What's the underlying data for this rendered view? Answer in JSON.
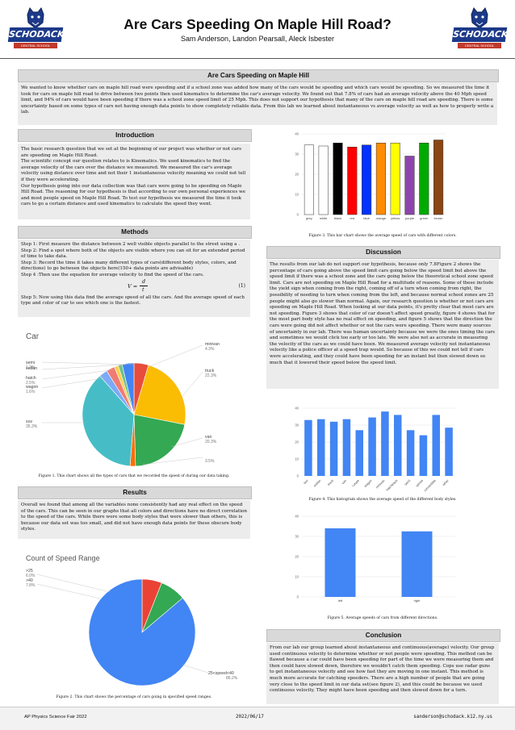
{
  "header": {
    "title": "Are Cars Speeding On Maple Hill Road?",
    "authors": "Sam Anderson, Landon Pearsall, Aleck Isbester",
    "logo_text": "SCHODACK",
    "logo_sub": "CENTRAL SCHOOL DISTRICT"
  },
  "abstract": {
    "heading": "Are Cars Speeding on Maple Hill",
    "text": "We wanted to know whether cars on maple hill road were speeding and if a school zone was added how many of the cars would be speeding and which cars would be speeding. So we measured the time it took for cars on maple hill road to drive between two points then used kinematics to determine the car's average velocity. We found out that 7.8% of cars had an average velocity above the 40 Mph speed limit, and 94% of cars would have been speeding if there was a school zone speed limit of 25 Mph. This does not support our hypothesis that many of the cars on maple hill road are speeding. There is some uncertainty based on some types of cars not having enough data points to show completely reliable data. From this lab we learned about instantaneous vs average velocity as well as how to properly write a lab."
  },
  "introduction": {
    "heading": "Introduction",
    "paragraphs": [
      "The basic research question that we set at the beginning of our project was whether or not cars are speeding on Maple Hill Road.",
      "The scientific concept our question relates to is Kinematics. We used kinematics to find the average velocity of the cars over the distance we measured. We measured the car's average velocity using distance over time and not their 1 instantaneous velocity meaning we could not tell if they were accelerating.",
      "Our hypothesis going into our data collection was that cars were going to be speeding on Maple Hill Road. The reasoning for our hypothesis is that according to our own personal experiences we and most people speed on Maple Hill Road. To test our hypothesis we measured the time it took cars to go a certain distance and used kinematics to calculate the speed they went."
    ]
  },
  "methods": {
    "heading": "Methods",
    "steps": [
      "Step 1: First measure the distance between 2 well visible objects parallel to the street using a .",
      "Step 2: Find a spot where both of the objects are visible where you can sit for an extended period of time to take data.",
      "Step 3: Record the time it takes many different types of cars(different body styles, colors, and directions) to go between the objects here(150+ data points are advisable)",
      "Step 4 :Then use the equation for average velocity to find the speed of the cars."
    ],
    "eq_lhs": "V =",
    "eq_num": "d",
    "eq_den": "t",
    "eq_label": "(1)",
    "step5": "Step 5: Now using this data find the average speed of all the cars. And the average speed of each type and color of car to see which one is the fastest."
  },
  "results": {
    "heading": "Results",
    "text": "Overall we found that among all the variables none consistently had any real effect on the speed of the cars. This can be seen in our graphs that all colors and directions have no direct correlation to the speed of the cars. While there were some body styles that were slower than others, this is because our data set was too small, and did not have enough data points for these obscure body styles."
  },
  "discussion": {
    "heading": "Discussion",
    "text": "The results from our lab do not support our hypothesis, because only 7.8Figure 2 shows the percentage of cars going above the speed limit cars going below the speed limit but above the speed limit if there was a school zone and the cars going below the theoretical school zone speed limit. Cars are not speeding on Maple Hill Road for a multitude of reasons. Some of these include the yield sign when coming from the right, coming off of a turn when coming from right, the possibility of needing to turn when coming from the left, and because normal school zones are 25 people might also go slower than normal. Again, our research question is whether or not cars are speeding on Maple Hill Road. When looking at our data points, it's pretty clear that most cars are not speeding. Figure 3 shows that color of car doesn't affect speed greatly, figure 4 shows that for the most part body style has no real effect on speeding, and figure 5 shows that the direction the cars were going did not affect whether or not the cars were speeding. There were many sources of uncertainty in our lab. There was human uncertainty because we were the ones timing the cars and sometimes we would click too early or too late. We were also not as accurate in measuring the velocity of the cars as we could have been. We measured average velocity not instantaneous velocity like a police officer at a speed trap would. So because of this we could not tell if cars were accelerating, and they could have been speeding for an instant but then slowed down so much that it lowered their speed below the speed limit."
  },
  "conclusion": {
    "heading": "Conclusion",
    "text": "From our lab our group learned about instantaneous and continuous(average) velocity. Our group used continuous velocity to determine whether or not people were speeding. This method can be flawed because a car could have been speeding for part of the time we were measuring them and then could have slowed down, therefore we wouldn't catch them speeding. Cops use radar guns to get instantaneous velocity and see how fast they are moving in one instant. This method is much more accurate for catching speeders. There are a high number of people that are going very close to the speed limit in our data set(see figure 2), and this could be because we used continuous velocity. They might have been speeding and then slowed down for a turn."
  },
  "captions": {
    "fig1": "Figure 1. This chart shows all the types of cars that we recorded the speed of during our data taking.",
    "fig2": "Figure 2. This chart shows the percentage of cars going in specified speed ranges.",
    "fig3": "Figure 3. This bar chart shows the average speed of cars with different colors.",
    "fig4": "Figure 4. This histogram shows the average speed of the different body styles.",
    "fig5": "Figure 5. Average speeds of cars from different directions."
  },
  "footer": {
    "left": "AP Physics Science Fair 2022",
    "center": "2022/06/17",
    "right": "sanderson@schodack.k12.ny.us"
  },
  "chart_data": [
    {
      "type": "pie",
      "title": "Car",
      "labels": [
        "minivan",
        "truck",
        "van",
        "wagon",
        "suv",
        "hatch",
        "coupe",
        "sedan",
        "semi",
        "convertible"
      ],
      "display": [
        "minivan",
        "truck",
        "van",
        "wagon",
        "suv",
        "hatch",
        "",
        "sedan",
        "semi",
        ""
      ],
      "values": [
        4.3,
        22.3,
        20.3,
        1.6,
        35.3,
        2.5,
        2.5,
        1.2,
        1.2,
        3.5
      ],
      "value_labels": [
        "4.3%",
        "22.3%",
        "20.3%",
        "1.6%",
        "35.3%",
        "2.5%",
        "",
        "",
        "1.2%",
        "3.5%"
      ],
      "colors": [
        "#e74c3c",
        "#fbbc04",
        "#34a853",
        "#ff6d01",
        "#46bdc6",
        "#7baaf7",
        "#f07b72",
        "#fcd04f",
        "#71c287",
        "#4285f4"
      ]
    },
    {
      "type": "pie",
      "title": "Count of Speed Range",
      "labels": [
        ">25",
        ">40",
        "25<speed<40"
      ],
      "values": [
        6.0,
        7.8,
        86.2
      ],
      "value_labels": [
        "6.0%",
        "7.8%",
        "86.2%"
      ],
      "colors": [
        "#ea4335",
        "#34a853",
        "#4285f4"
      ],
      "legend": "left"
    },
    {
      "type": "bar",
      "categories": [
        "grey",
        "white",
        "black",
        "red",
        "blue",
        "orange",
        "yellow",
        "purple",
        "green",
        "brown"
      ],
      "values": [
        34.5,
        34,
        35.5,
        33.5,
        34.5,
        35.5,
        35.5,
        29,
        35.5,
        37
      ],
      "colors": [
        "#ffffff",
        "#ffffff",
        "#000000",
        "#ff0000",
        "#0033ff",
        "#ff8c00",
        "#ffff00",
        "#8e44ad",
        "#00aa00",
        "#8b4513"
      ],
      "ylim": [
        0,
        40
      ],
      "yticks": [
        0,
        10,
        20,
        30,
        40
      ]
    },
    {
      "type": "bar",
      "categories": [
        "suv",
        "sedan",
        "truck",
        "van",
        "coupe",
        "wagon",
        "minivan",
        "hatchback",
        "semi",
        "sports",
        "convertible",
        "other"
      ],
      "values": [
        33,
        33.5,
        32,
        33.5,
        27,
        34.5,
        38,
        36,
        27,
        24,
        36,
        28.5
      ],
      "color": "#4285f4",
      "ylim": [
        0,
        40
      ],
      "yticks": [
        0,
        10,
        20,
        30,
        40
      ]
    },
    {
      "type": "bar",
      "categories": [
        "left",
        "right"
      ],
      "values": [
        34,
        32.5
      ],
      "color": "#4285f4",
      "ylim": [
        0,
        40
      ],
      "yticks": [
        0,
        10,
        20,
        30,
        40
      ]
    }
  ]
}
